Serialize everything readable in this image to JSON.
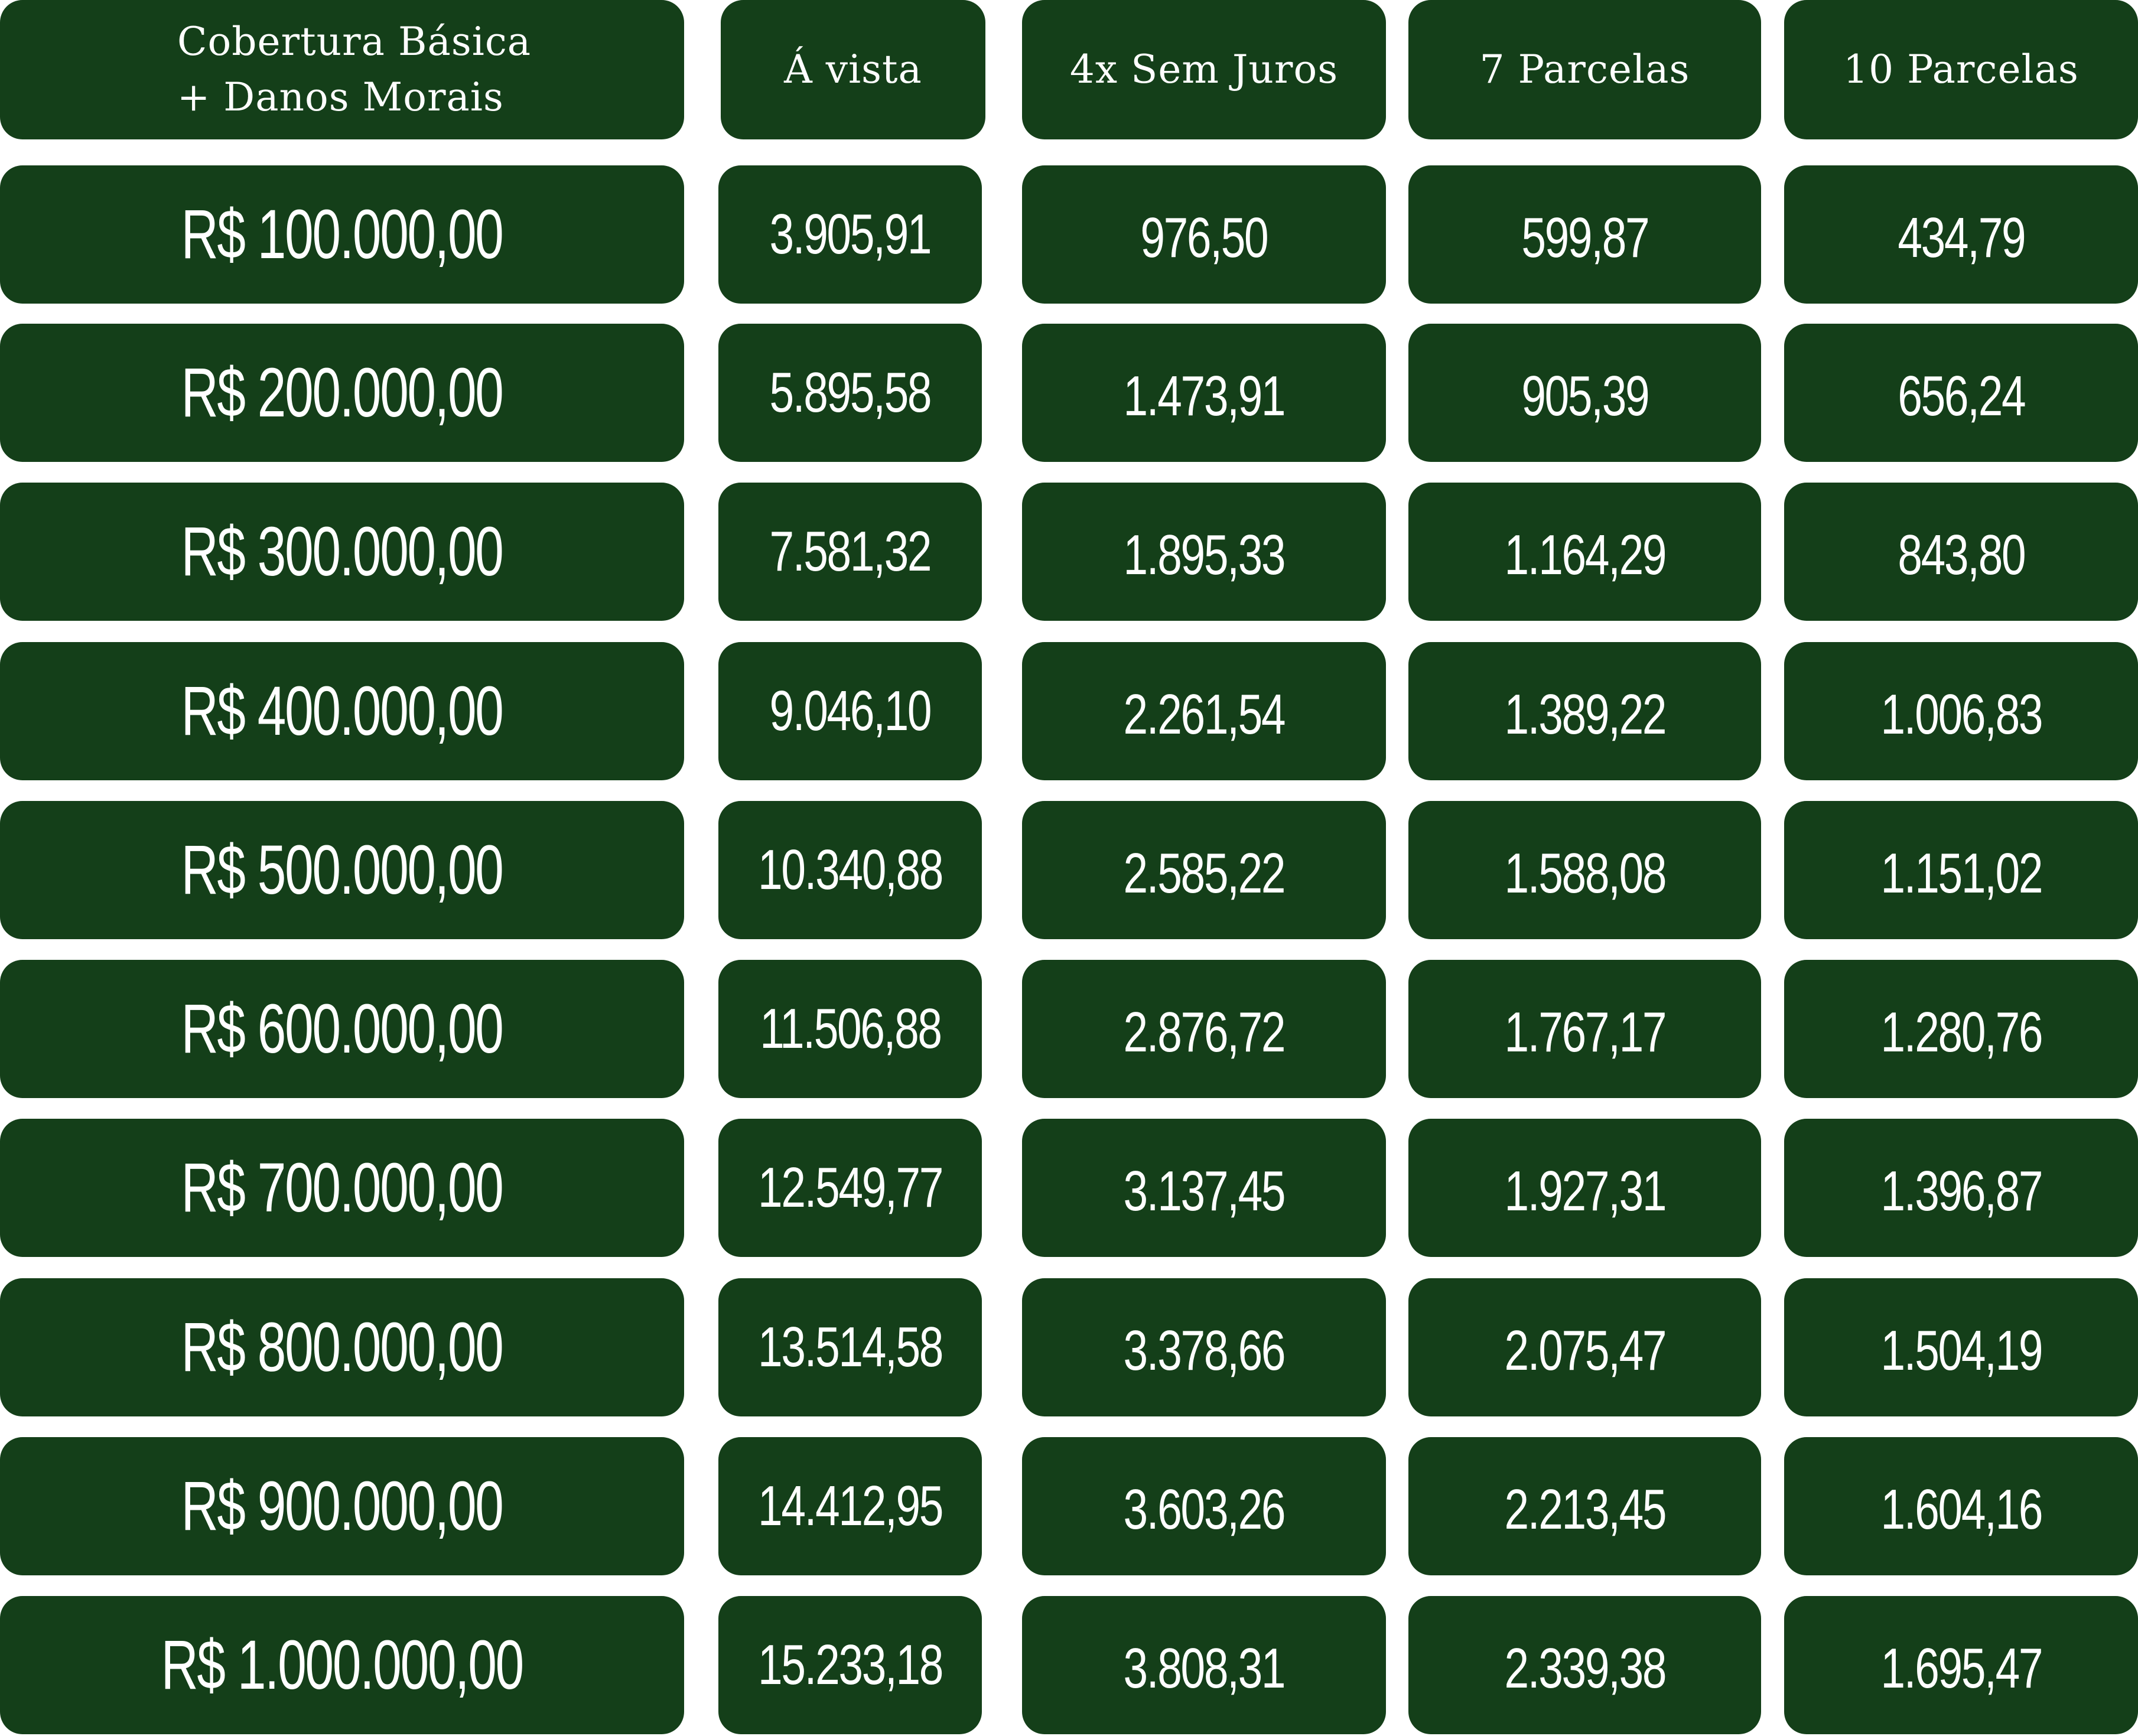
{
  "header": {
    "coverage_line1": "Cobertura Básica",
    "coverage_line2": "+ Danos Morais",
    "a_vista": "Á vista",
    "four_x": "4x Sem Juros",
    "seven": "7 Parcelas",
    "ten": "10 Parcelas"
  },
  "rows": [
    {
      "coverage": "R$ 100.000,00",
      "a_vista": "3.905,91",
      "four_x": "976,50",
      "seven": "599,87",
      "ten": "434,79"
    },
    {
      "coverage": "R$ 200.000,00",
      "a_vista": "5.895,58",
      "four_x": "1.473,91",
      "seven": "905,39",
      "ten": "656,24"
    },
    {
      "coverage": "R$ 300.000,00",
      "a_vista": "7.581,32",
      "four_x": "1.895,33",
      "seven": "1.164,29",
      "ten": "843,80"
    },
    {
      "coverage": "R$ 400.000,00",
      "a_vista": "9.046,10",
      "four_x": "2.261,54",
      "seven": "1.389,22",
      "ten": "1.006,83"
    },
    {
      "coverage": "R$ 500.000,00",
      "a_vista": "10.340,88",
      "four_x": "2.585,22",
      "seven": "1.588,08",
      "ten": "1.151,02"
    },
    {
      "coverage": "R$ 600.000,00",
      "a_vista": "11.506,88",
      "four_x": "2.876,72",
      "seven": "1.767,17",
      "ten": "1.280,76"
    },
    {
      "coverage": "R$ 700.000,00",
      "a_vista": "12.549,77",
      "four_x": "3.137,45",
      "seven": "1.927,31",
      "ten": "1.396,87"
    },
    {
      "coverage": "R$ 800.000,00",
      "a_vista": "13.514,58",
      "four_x": "3.378,66",
      "seven": "2.075,47",
      "ten": "1.504,19"
    },
    {
      "coverage": "R$ 900.000,00",
      "a_vista": "14.412,95",
      "four_x": "3.603,26",
      "seven": "2.213,45",
      "ten": "1.604,16"
    },
    {
      "coverage": "R$ 1.000.000,00",
      "a_vista": "15.233,18",
      "four_x": "3.808,31",
      "seven": "2.339,38",
      "ten": "1.695,47"
    }
  ],
  "colors": {
    "cell_background": "#143f19",
    "cell_text": "#ffffff",
    "page_background": "#ffffff"
  }
}
